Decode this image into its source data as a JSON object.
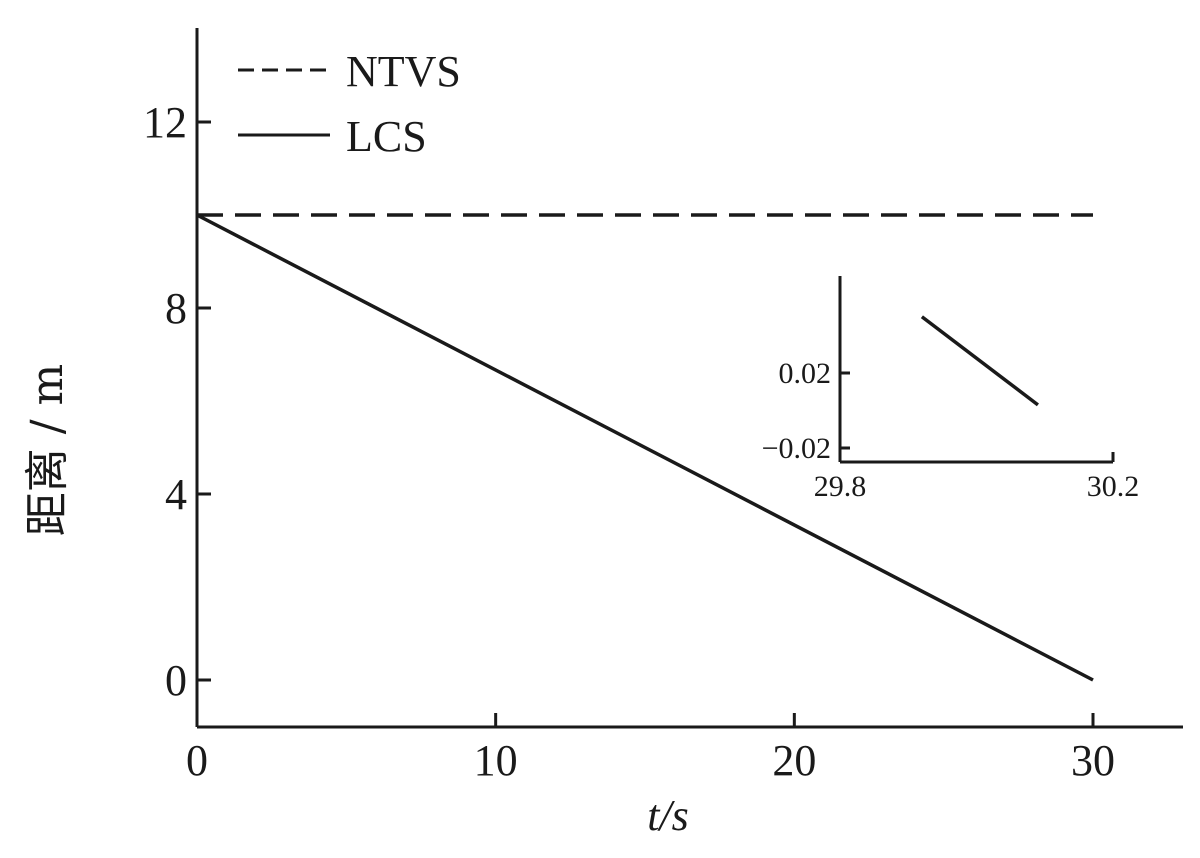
{
  "chart_data": [
    {
      "type": "line",
      "xlabel": "t/s",
      "ylabel": "距离 / m",
      "xlim": [
        0,
        32.5
      ],
      "ylim": [
        -1,
        14
      ],
      "xticks": [
        0,
        10,
        20,
        30
      ],
      "xtick_labels": [
        "0",
        "10",
        "20",
        "30"
      ],
      "yticks": [
        0,
        4,
        8,
        12
      ],
      "ytick_labels": [
        "0",
        "4",
        "8",
        "12"
      ],
      "grid": false,
      "legend_position": "top-left",
      "series": [
        {
          "name": "NTVS",
          "style": "dashed",
          "color": "#1a1a1a",
          "x": [
            0,
            30
          ],
          "y": [
            10,
            10
          ]
        },
        {
          "name": "LCS",
          "style": "solid",
          "color": "#1a1a1a",
          "x": [
            0,
            30
          ],
          "y": [
            10,
            0
          ]
        }
      ]
    },
    {
      "type": "line",
      "role": "inset",
      "xlim": [
        29.8,
        30.2
      ],
      "ylim": [
        -0.02,
        0.07
      ],
      "xticks": [
        29.8,
        30.2
      ],
      "xtick_labels": [
        "29.8",
        "30.2"
      ],
      "yticks": [
        0.02,
        -0.02
      ],
      "ytick_labels": [
        "0.02",
        "−0.02"
      ],
      "series": [
        {
          "style": "solid",
          "color": "#1a1a1a",
          "x": [
            29.92,
            30.09
          ],
          "y": [
            0.05,
            0.003
          ]
        }
      ]
    }
  ]
}
